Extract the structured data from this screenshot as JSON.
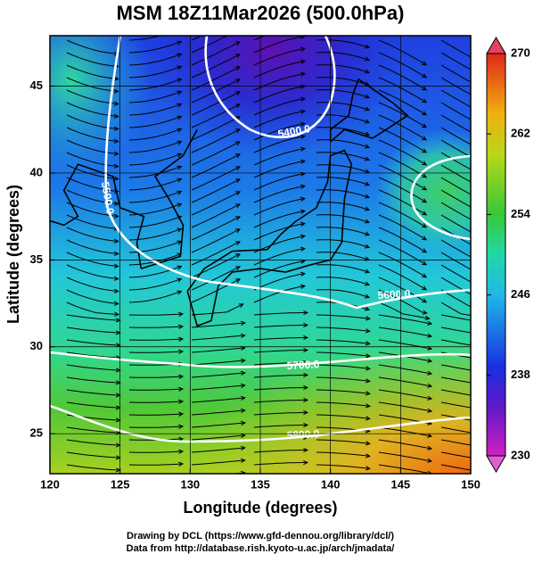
{
  "title": "MSM 18Z11Mar2026 (500.0hPa)",
  "x_axis": {
    "label": "Longitude (degrees)",
    "lim": [
      120,
      150
    ],
    "ticks": [
      120,
      125,
      130,
      135,
      140,
      145,
      150
    ]
  },
  "y_axis": {
    "label": "Latitude  (degrees)",
    "lim": [
      22.7,
      47.9
    ],
    "ticks": [
      25,
      30,
      35,
      40,
      45
    ]
  },
  "colorbar": {
    "lim": [
      230,
      270
    ],
    "ticks": [
      230,
      238,
      246,
      254,
      262,
      270
    ]
  },
  "contour_labels": [
    "5400.0",
    "5500.0",
    "5600.0",
    "5700.0",
    "5800.0"
  ],
  "credits": [
    "Drawing by DCL (https://www.gfd-dennou.org/library/dcl/)",
    "Data from http://database.rish.kyoto-u.ac.jp/arch/jmadata/"
  ]
}
